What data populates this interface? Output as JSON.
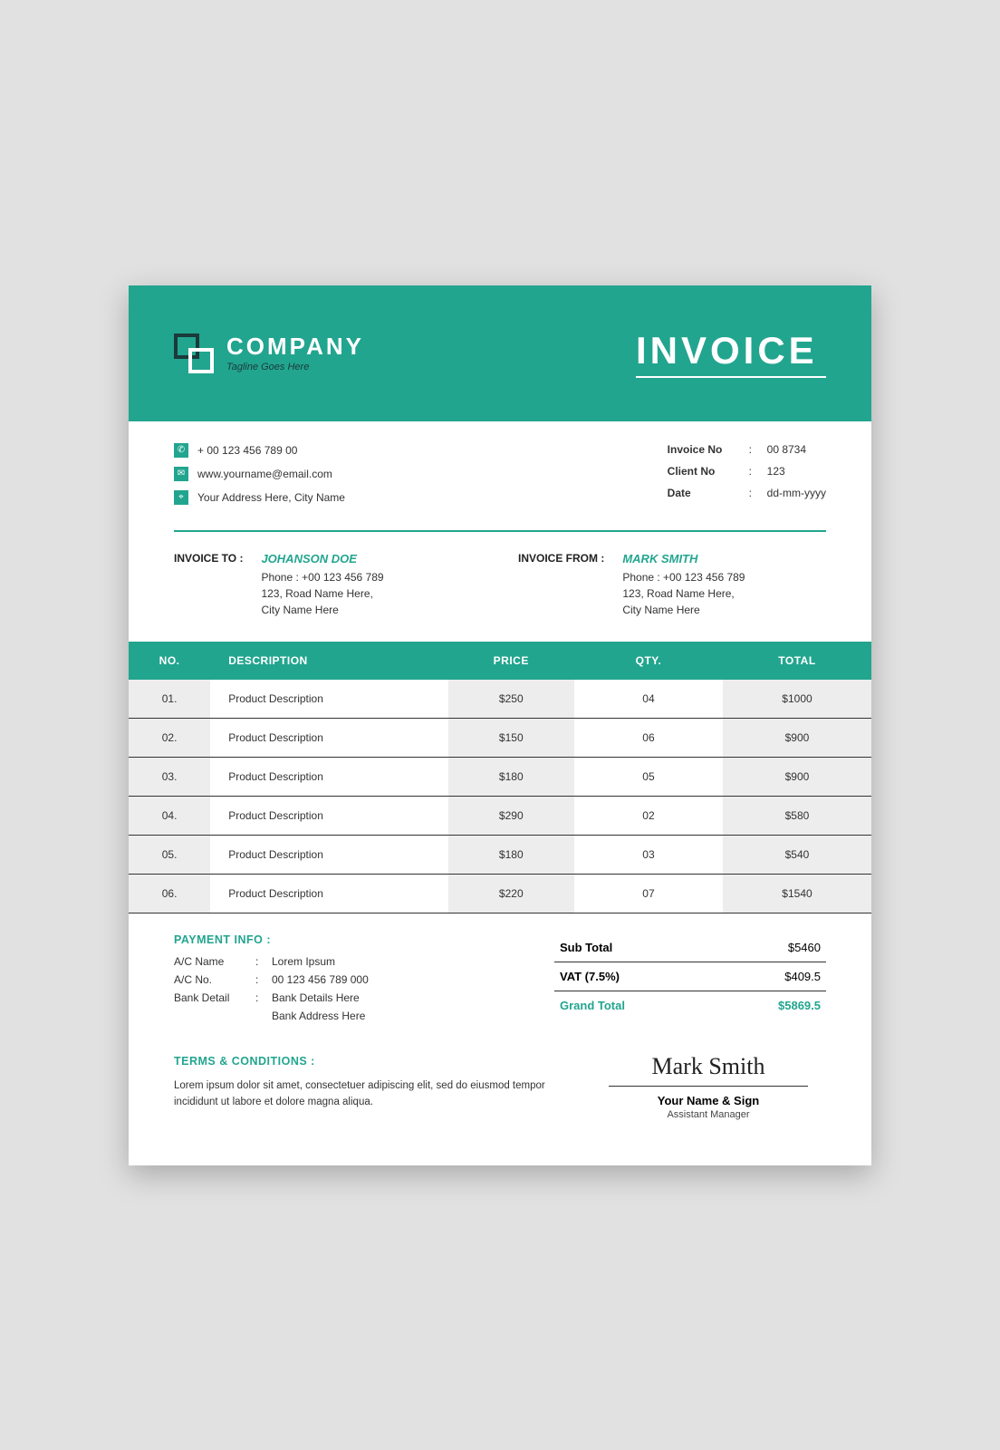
{
  "colors": {
    "accent": "#22a58f",
    "bg": "#e1e1e1",
    "paper": "#ffffff",
    "text": "#333333",
    "dark": "#1a3a3a"
  },
  "header": {
    "company": "COMPANY",
    "tagline": "Tagline Goes Here",
    "title": "INVOICE"
  },
  "contact": {
    "phone": "+ 00 123 456 789 00",
    "email": "www.yourname@email.com",
    "address": "Your Address Here, City Name"
  },
  "meta": {
    "invoice_no_label": "Invoice No",
    "invoice_no": "00 8734",
    "client_no_label": "Client No",
    "client_no": "123",
    "date_label": "Date",
    "date": "dd-mm-yyyy"
  },
  "invoice_to": {
    "label": "INVOICE TO :",
    "name": "JOHANSON DOE",
    "phone": "Phone : +00 123 456 789",
    "line1": "123, Road Name Here,",
    "line2": "City Name Here"
  },
  "invoice_from": {
    "label": "INVOICE FROM :",
    "name": "MARK SMITH",
    "phone": "Phone : +00 123 456 789",
    "line1": "123, Road Name Here,",
    "line2": "City Name Here"
  },
  "table": {
    "headers": {
      "no": "NO.",
      "desc": "DESCRIPTION",
      "price": "PRICE",
      "qty": "QTY.",
      "total": "TOTAL"
    },
    "rows": [
      {
        "no": "01.",
        "desc": "Product Description",
        "price": "$250",
        "qty": "04",
        "total": "$1000"
      },
      {
        "no": "02.",
        "desc": "Product Description",
        "price": "$150",
        "qty": "06",
        "total": "$900"
      },
      {
        "no": "03.",
        "desc": "Product Description",
        "price": "$180",
        "qty": "05",
        "total": "$900"
      },
      {
        "no": "04.",
        "desc": "Product Description",
        "price": "$290",
        "qty": "02",
        "total": "$580"
      },
      {
        "no": "05.",
        "desc": "Product Description",
        "price": "$180",
        "qty": "03",
        "total": "$540"
      },
      {
        "no": "06.",
        "desc": "Product Description",
        "price": "$220",
        "qty": "07",
        "total": "$1540"
      }
    ]
  },
  "payment": {
    "title": "PAYMENT INFO :",
    "rows": [
      {
        "label": "A/C Name",
        "value": "Lorem Ipsum"
      },
      {
        "label": "A/C No.",
        "value": "00 123 456 789 000"
      },
      {
        "label": "Bank Detail",
        "value": "Bank Details Here"
      },
      {
        "label": "",
        "value": "Bank Address Here"
      }
    ]
  },
  "totals": {
    "subtotal_label": "Sub Total",
    "subtotal": "$5460",
    "vat_label": "VAT (7.5%)",
    "vat": "$409.5",
    "grand_label": "Grand Total",
    "grand": "$5869.5"
  },
  "terms": {
    "title": "TERMS & CONDITIONS :",
    "body": "Lorem ipsum dolor sit amet, consectetuer adipiscing elit, sed do eiusmod tempor incididunt ut labore et dolore magna aliqua."
  },
  "signature": {
    "script": "Mark Smith",
    "name": "Your Name & Sign",
    "role": "Assistant Manager"
  }
}
